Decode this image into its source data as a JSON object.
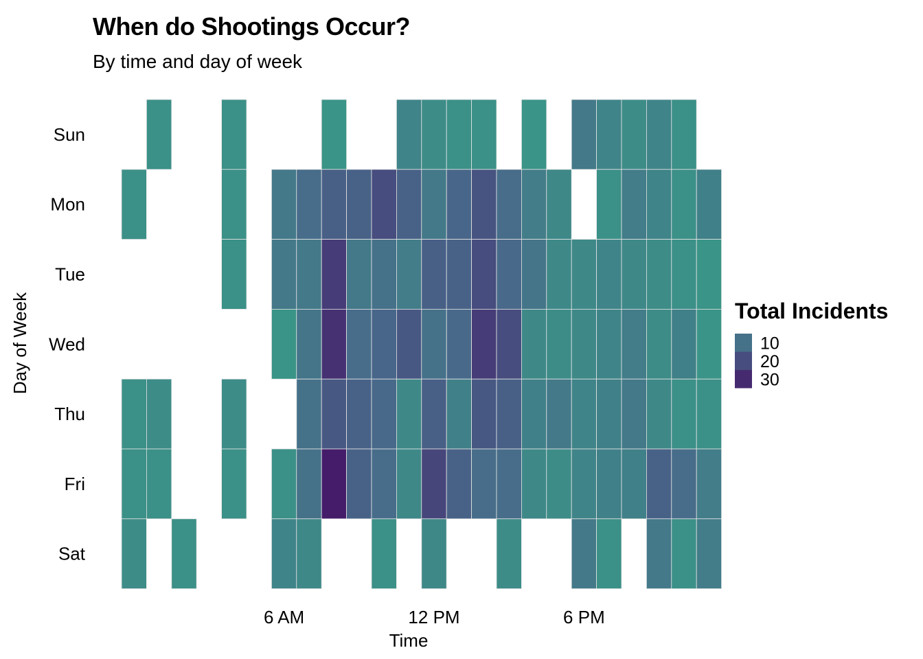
{
  "chart_data": {
    "type": "heatmap",
    "title": "When do Shootings Occur?",
    "subtitle": "By time and day of week",
    "xlabel": "Time",
    "ylabel": "Day of Week",
    "x_ticks": [
      {
        "hour": 6,
        "label": "6 AM"
      },
      {
        "hour": 12,
        "label": "12 PM"
      },
      {
        "hour": 18,
        "label": "6 PM"
      }
    ],
    "x_hours": [
      0,
      1,
      2,
      3,
      4,
      5,
      6,
      7,
      8,
      9,
      10,
      11,
      12,
      13,
      14,
      15,
      16,
      17,
      18,
      19,
      20,
      21,
      22,
      23
    ],
    "days": [
      "Sun",
      "Mon",
      "Tue",
      "Wed",
      "Thu",
      "Fri",
      "Sat"
    ],
    "values": [
      [
        null,
        2,
        null,
        null,
        2,
        null,
        null,
        null,
        1,
        null,
        null,
        5,
        3,
        2,
        2,
        null,
        1,
        null,
        8,
        5,
        3,
        5,
        2,
        null
      ],
      [
        2,
        null,
        null,
        null,
        2,
        null,
        8,
        11,
        15,
        14,
        20,
        14,
        8,
        13,
        18,
        11,
        7,
        4,
        null,
        2,
        7,
        5,
        2,
        6
      ],
      [
        null,
        null,
        null,
        null,
        2,
        null,
        8,
        8,
        25,
        8,
        10,
        7,
        15,
        14,
        20,
        12,
        9,
        4,
        4,
        5,
        4,
        3,
        2,
        1
      ],
      [
        null,
        null,
        null,
        null,
        null,
        null,
        1,
        9,
        28,
        11,
        13,
        17,
        10,
        12,
        25,
        20,
        4,
        3,
        4,
        5,
        7,
        3,
        6,
        1
      ],
      [
        2,
        3,
        null,
        null,
        3,
        null,
        null,
        10,
        17,
        14,
        12,
        4,
        15,
        6,
        17,
        15,
        6,
        8,
        5,
        6,
        8,
        4,
        2,
        2
      ],
      [
        2,
        2,
        null,
        null,
        2,
        null,
        2,
        10,
        34,
        14,
        11,
        4,
        22,
        14,
        11,
        11,
        4,
        3,
        5,
        6,
        6,
        14,
        11,
        7
      ],
      [
        3,
        null,
        2,
        null,
        null,
        null,
        5,
        4,
        null,
        null,
        2,
        null,
        4,
        null,
        null,
        3,
        null,
        null,
        8,
        2,
        null,
        8,
        2,
        7
      ]
    ],
    "legend": {
      "title": "Total Incidents",
      "breaks": [
        10,
        20,
        30
      ]
    },
    "color_scale": {
      "low": "#3a9487",
      "mid": "#48698a",
      "high": "#451c6a",
      "min": 1,
      "max": 34
    }
  }
}
